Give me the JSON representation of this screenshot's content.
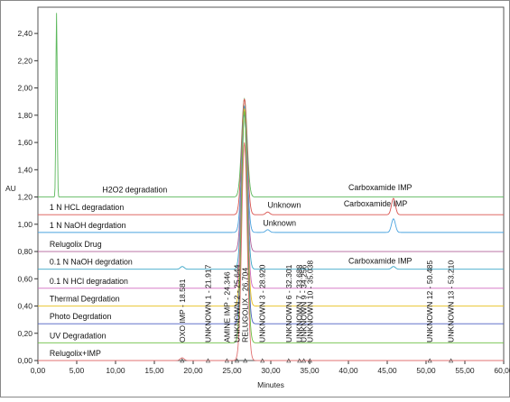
{
  "chart_data": {
    "type": "line",
    "xlabel": "Minutes",
    "ylabel": "AU",
    "xlim": [
      0,
      60
    ],
    "ylim": [
      0,
      2.5
    ],
    "x_ticks": [
      "0,00",
      "5,00",
      "10,00",
      "15,00",
      "20,00",
      "25,00",
      "30,00",
      "35,00",
      "40,00",
      "45,00",
      "50,00",
      "55,00",
      "60,00"
    ],
    "y_ticks": [
      "0,00",
      "0,20",
      "0,40",
      "0,60",
      "0,80",
      "1,00",
      "1,20",
      "1,40",
      "1,60",
      "1,80",
      "2,00",
      "2,20",
      "2,40"
    ],
    "series": [
      {
        "name": "H2O2 degradation",
        "color": "#5cb85c",
        "baseline": 1.2,
        "peaks": [
          {
            "x": 2.4,
            "h": 1.45
          },
          {
            "x": 26.6,
            "h": 0.72
          }
        ]
      },
      {
        "name": "1 N HCL degradation",
        "color": "#d9534f",
        "baseline": 1.07,
        "peaks": [
          {
            "x": 26.6,
            "h": 0.85
          },
          {
            "x": 29.6,
            "h": 0.02
          },
          {
            "x": 45.8,
            "h": 0.12
          }
        ]
      },
      {
        "name": "1 N NaOH degrdation",
        "color": "#4aa3df",
        "baseline": 0.94,
        "peaks": [
          {
            "x": 26.6,
            "h": 0.9
          },
          {
            "x": 29.6,
            "h": 0.02
          },
          {
            "x": 45.8,
            "h": 0.1
          }
        ]
      },
      {
        "name": "Relugolix Drug",
        "color": "#b0609a",
        "baseline": 0.8,
        "peaks": [
          {
            "x": 26.6,
            "h": 1.05
          }
        ]
      },
      {
        "name": "0.1 N NaOH degrdation",
        "color": "#3aa6c8",
        "baseline": 0.67,
        "peaks": [
          {
            "x": 18.6,
            "h": 0.02
          },
          {
            "x": 26.6,
            "h": 1.2
          },
          {
            "x": 45.8,
            "h": 0.02
          }
        ]
      },
      {
        "name": "0.1 N HCl degradation",
        "color": "#d16ac0",
        "baseline": 0.53,
        "peaks": [
          {
            "x": 26.6,
            "h": 1.3
          }
        ]
      },
      {
        "name": "Thermal Degrdation",
        "color": "#e8c020",
        "baseline": 0.4,
        "peaks": [
          {
            "x": 26.6,
            "h": 1.45
          }
        ]
      },
      {
        "name": "Photo Degrdation",
        "color": "#4a5fc1",
        "baseline": 0.27,
        "peaks": [
          {
            "x": 26.6,
            "h": 1.55
          }
        ]
      },
      {
        "name": "UV Degradation",
        "color": "#6abf40",
        "baseline": 0.13,
        "peaks": [
          {
            "x": 26.6,
            "h": 1.7
          }
        ]
      },
      {
        "name": "Relugolix+IMP",
        "color": "#e07070",
        "baseline": 0.0,
        "peaks": [
          {
            "x": 18.58,
            "h": 0.02
          },
          {
            "x": 26.6,
            "h": 1.6
          }
        ]
      }
    ],
    "peak_labels": [
      {
        "text": "OXO IMP - 18.581",
        "x": 18.581
      },
      {
        "text": "UNKNOWN 1 - 21.917",
        "x": 21.917
      },
      {
        "text": "AMINE IMP - 24.346",
        "x": 24.346
      },
      {
        "text": "UNKNOWN 2 - 25.644",
        "x": 25.644
      },
      {
        "text": "RELUGOLIX - 26.704",
        "x": 26.704
      },
      {
        "text": "UNKNOWN 3 - 28.920",
        "x": 28.92
      },
      {
        "text": "UNKNOWN 6 - 32.301",
        "x": 32.301
      },
      {
        "text": "UNKNOWN 7 - 33.688",
        "x": 33.688
      },
      {
        "text": "UNKNOWN 9 - 34.256",
        "x": 34.256
      },
      {
        "text": "UNKNOWN 10 - 35.038",
        "x": 35.038
      },
      {
        "text": "UNKNOWN 12 - 50.485",
        "x": 50.485
      },
      {
        "text": "UNKNOWN 13 - 53.210",
        "x": 53.21
      }
    ],
    "annotations": [
      {
        "text": "Unknown",
        "x": 29.6,
        "y": 1.12
      },
      {
        "text": "Unknown",
        "x": 29.0,
        "y": 0.99
      },
      {
        "text": "Carboxamide IMP",
        "x": 40.0,
        "y": 1.25
      },
      {
        "text": "Carboxamide IMP",
        "x": 39.4,
        "y": 1.13
      },
      {
        "text": "Carboxamide IMP",
        "x": 40.0,
        "y": 0.71
      }
    ]
  }
}
